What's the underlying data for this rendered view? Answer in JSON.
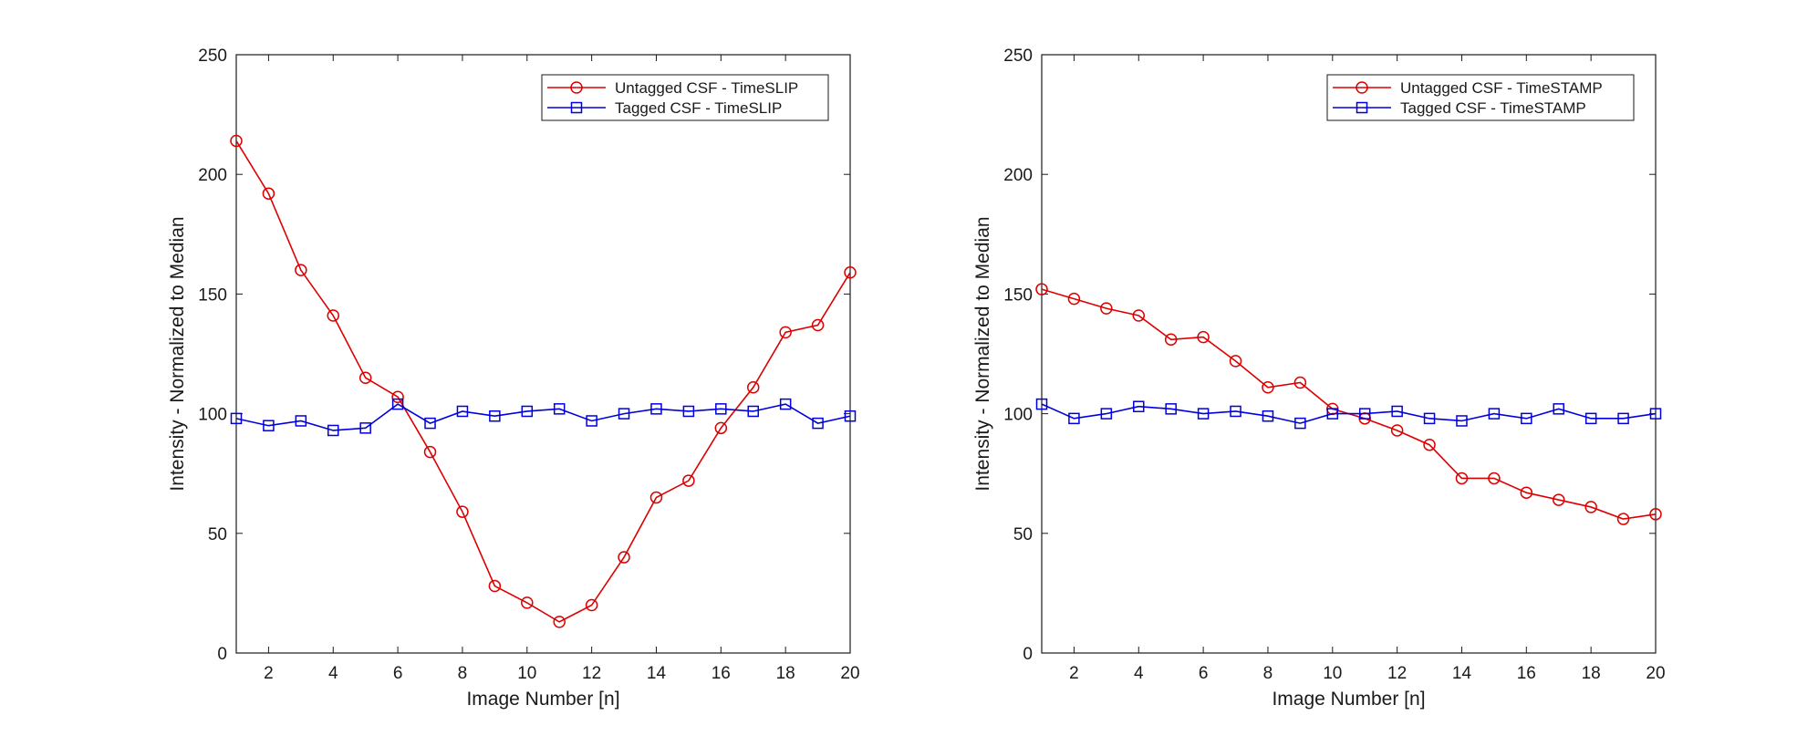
{
  "chart_data": [
    {
      "type": "line",
      "title": "",
      "xlabel": "Image Number [n]",
      "ylabel": "Intensity - Normalized to Median",
      "xlim": [
        1,
        20
      ],
      "ylim": [
        0,
        250
      ],
      "xticks": [
        2,
        4,
        6,
        8,
        10,
        12,
        14,
        16,
        18,
        20
      ],
      "yticks": [
        0,
        50,
        100,
        150,
        200,
        250
      ],
      "grid": false,
      "legend_position": "top-right",
      "x": [
        1,
        2,
        3,
        4,
        5,
        6,
        7,
        8,
        9,
        10,
        11,
        12,
        13,
        14,
        15,
        16,
        17,
        18,
        19,
        20
      ],
      "series": [
        {
          "name": "Untagged CSF - TimeSLIP",
          "color": "#dd0000",
          "marker": "circle",
          "values": [
            214,
            192,
            160,
            141,
            115,
            107,
            84,
            59,
            28,
            21,
            13,
            20,
            40,
            65,
            72,
            94,
            111,
            134,
            137,
            159
          ]
        },
        {
          "name": "Tagged CSF - TimeSLIP",
          "color": "#0000dd",
          "marker": "square",
          "values": [
            98,
            95,
            97,
            93,
            94,
            104,
            96,
            101,
            99,
            101,
            102,
            97,
            100,
            102,
            101,
            102,
            101,
            104,
            96,
            99
          ]
        }
      ]
    },
    {
      "type": "line",
      "title": "",
      "xlabel": "Image Number [n]",
      "ylabel": "Intensity - Normalized to Median",
      "xlim": [
        1,
        20
      ],
      "ylim": [
        0,
        250
      ],
      "xticks": [
        2,
        4,
        6,
        8,
        10,
        12,
        14,
        16,
        18,
        20
      ],
      "yticks": [
        0,
        50,
        100,
        150,
        200,
        250
      ],
      "grid": false,
      "legend_position": "top-right",
      "x": [
        1,
        2,
        3,
        4,
        5,
        6,
        7,
        8,
        9,
        10,
        11,
        12,
        13,
        14,
        15,
        16,
        17,
        18,
        19,
        20
      ],
      "series": [
        {
          "name": "Untagged CSF - TimeSTAMP",
          "color": "#dd0000",
          "marker": "circle",
          "values": [
            152,
            148,
            144,
            141,
            131,
            132,
            122,
            111,
            113,
            102,
            98,
            93,
            87,
            73,
            73,
            67,
            64,
            61,
            56,
            58
          ]
        },
        {
          "name": "Tagged CSF - TimeSTAMP",
          "color": "#0000dd",
          "marker": "square",
          "values": [
            104,
            98,
            100,
            103,
            102,
            100,
            101,
            99,
            96,
            100,
            100,
            101,
            98,
            97,
            100,
            98,
            102,
            98,
            98,
            100
          ]
        }
      ]
    }
  ]
}
